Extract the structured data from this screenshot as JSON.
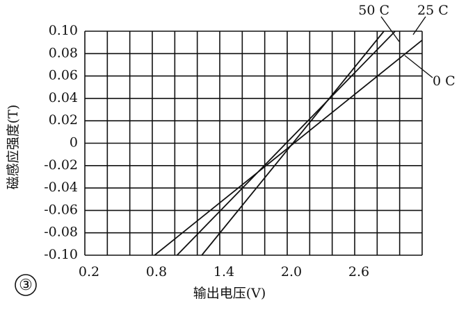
{
  "chart_data": {
    "type": "line",
    "xlabel": "输出电压(V)",
    "ylabel": "磁感应强度(T)",
    "xlim": [
      0.2,
      3.2
    ],
    "ylim": [
      -0.1,
      0.1
    ],
    "xticks": [
      0.2,
      0.8,
      1.4,
      {
        "value": 2.0,
        "label": "2.0"
      },
      2.6
    ],
    "yticks": [
      {
        "value": 0.1,
        "label": "0.10"
      },
      0.08,
      0.06,
      0.04,
      0.02,
      0,
      -0.02,
      -0.04,
      -0.06,
      -0.08,
      {
        "value": -0.1,
        "label": "-0.10"
      }
    ],
    "x_gridlines": [
      0.2,
      0.4,
      0.6,
      0.8,
      1.0,
      1.2,
      1.4,
      1.6,
      1.8,
      2.0,
      2.2,
      2.4,
      2.6,
      2.8,
      3.0,
      3.2
    ],
    "grid": true,
    "series": [
      {
        "name": "0 C",
        "color": "#111111",
        "x": [
          0.82,
          3.2
        ],
        "values": [
          -0.1,
          0.092
        ]
      },
      {
        "name": "25 C",
        "color": "#111111",
        "x": [
          1.02,
          2.96
        ],
        "values": [
          -0.1,
          0.1
        ]
      },
      {
        "name": "50 C",
        "color": "#111111",
        "x": [
          1.24,
          2.86
        ],
        "values": [
          -0.1,
          0.1
        ]
      }
    ],
    "annotations": [
      "③"
    ]
  }
}
